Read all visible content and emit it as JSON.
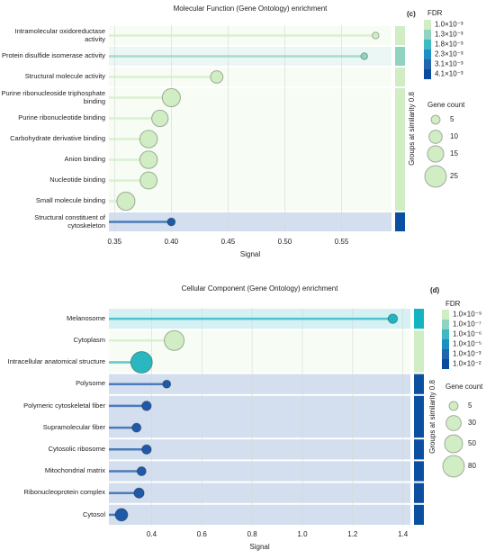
{
  "chart_data": [
    {
      "type": "lollipop",
      "title": "Molecular Function (Gene Ontology) enrichment",
      "panel_label": "(c)",
      "categories": [
        "Intramolecular oxidoreductase activity",
        "Protein disulfide isomerase activity",
        "Structural molecule activity",
        "Purine ribonucleoside triphosphate binding",
        "Purine ribonucleotide binding",
        "Carbohydrate derivative binding",
        "Anion binding",
        "Nucleotide binding",
        "Small molecule binding",
        "Structural constituent of cytoskeleton"
      ],
      "values": [
        0.58,
        0.57,
        0.44,
        0.4,
        0.39,
        0.38,
        0.38,
        0.38,
        0.36,
        0.4
      ],
      "sizes": [
        3,
        3,
        9,
        18,
        15,
        17,
        17,
        16,
        18,
        4
      ],
      "colors": [
        "#d0edc4",
        "#8fd3c0",
        "#d0edc4",
        "#d0edc4",
        "#d0edc4",
        "#d0edc4",
        "#d0edc4",
        "#d0edc4",
        "#d0edc4",
        "#1f5aa8"
      ],
      "x_label": "Signal",
      "xlim": [
        0.345,
        0.594
      ],
      "xticks": [
        0.35,
        {
          "value": 0.4,
          "label": "0.40"
        },
        0.45,
        {
          "value": 0.5,
          "label": "0.50"
        },
        0.55
      ],
      "grid": true,
      "group_label": "Groups at similarity 0.8",
      "groups": [
        {
          "count": 1,
          "color": "#d0edc4"
        },
        {
          "count": 1,
          "color": "#8fd3c0"
        },
        {
          "count": 1,
          "color": "#d0edc4"
        },
        {
          "count": 6,
          "color": "#d0edc4"
        },
        {
          "count": 1,
          "color": "#0b4fa0"
        }
      ],
      "color_legend": {
        "title": "FDR",
        "labels": [
          "1.0×10⁻³",
          "1.3×10⁻³",
          "1.8×10⁻³",
          "2.3×10⁻³",
          "3.1×10⁻³",
          "4.1×10⁻³"
        ],
        "colors": [
          "#d0edc4",
          "#8fd3c0",
          "#3fbac4",
          "#1e8fc2",
          "#2166ac",
          "#0b4a9e"
        ]
      },
      "size_legend": {
        "title": "Gene count",
        "values": [
          5,
          10,
          15,
          25
        ]
      }
    },
    {
      "type": "lollipop",
      "title": "Cellular Component (Gene Ontology) enrichment",
      "panel_label": "(d)",
      "categories": [
        "Melanosome",
        "Cytoplasm",
        "Intracellular anatomical structure",
        "Polysome",
        "Polymeric cytoskeletal fiber",
        "Supramolecular fiber",
        "Cytosolic ribosome",
        "Mitochondrial matrix",
        "Ribonucleoprotein complex",
        "Cytosol"
      ],
      "values": [
        1.36,
        0.49,
        0.36,
        0.46,
        0.38,
        0.34,
        0.38,
        0.36,
        0.35,
        0.28
      ],
      "sizes": [
        6,
        64,
        80,
        3,
        6,
        5,
        6,
        5,
        8,
        17
      ],
      "colors": [
        "#1fb5c2",
        "#d0edc4",
        "#2bb7bf",
        "#1f5aa8",
        "#1f5aa8",
        "#1f5aa8",
        "#1f5aa8",
        "#1f5aa8",
        "#1f5aa8",
        "#1f5aa8"
      ],
      "x_label": "Signal",
      "xlim": [
        0.23,
        1.43
      ],
      "xticks": [
        0.4,
        0.6,
        0.8,
        {
          "value": 1,
          "label": "1.0"
        },
        1.2,
        1.4
      ],
      "grid": true,
      "group_label": "Groups at similarity 0.8",
      "groups": [
        {
          "count": 1,
          "color": "#14b3bf"
        },
        {
          "count": 2,
          "color": "#d0edc4"
        },
        {
          "count": 1,
          "color": "#0b4fa0"
        },
        {
          "count": 2,
          "color": "#0b4fa0"
        },
        {
          "count": 1,
          "color": "#0b4fa0"
        },
        {
          "count": 1,
          "color": "#0b4fa0"
        },
        {
          "count": 1,
          "color": "#0b4fa0"
        },
        {
          "count": 1,
          "color": "#0b4fa0"
        }
      ],
      "color_legend": {
        "title": "FDR",
        "labels": [
          "1.0×10⁻⁹",
          "1.0×10⁻⁷",
          "1.0×10⁻⁶",
          "1.0×10⁻⁵",
          "1.0×10⁻³",
          "1.0×10⁻²"
        ],
        "colors": [
          "#d0edc4",
          "#8fd3c0",
          "#3fbac4",
          "#1e8fc2",
          "#2166ac",
          "#0b4a9e"
        ]
      },
      "size_legend": {
        "title": "Gene count",
        "values": [
          5,
          30,
          50,
          80
        ]
      }
    }
  ]
}
